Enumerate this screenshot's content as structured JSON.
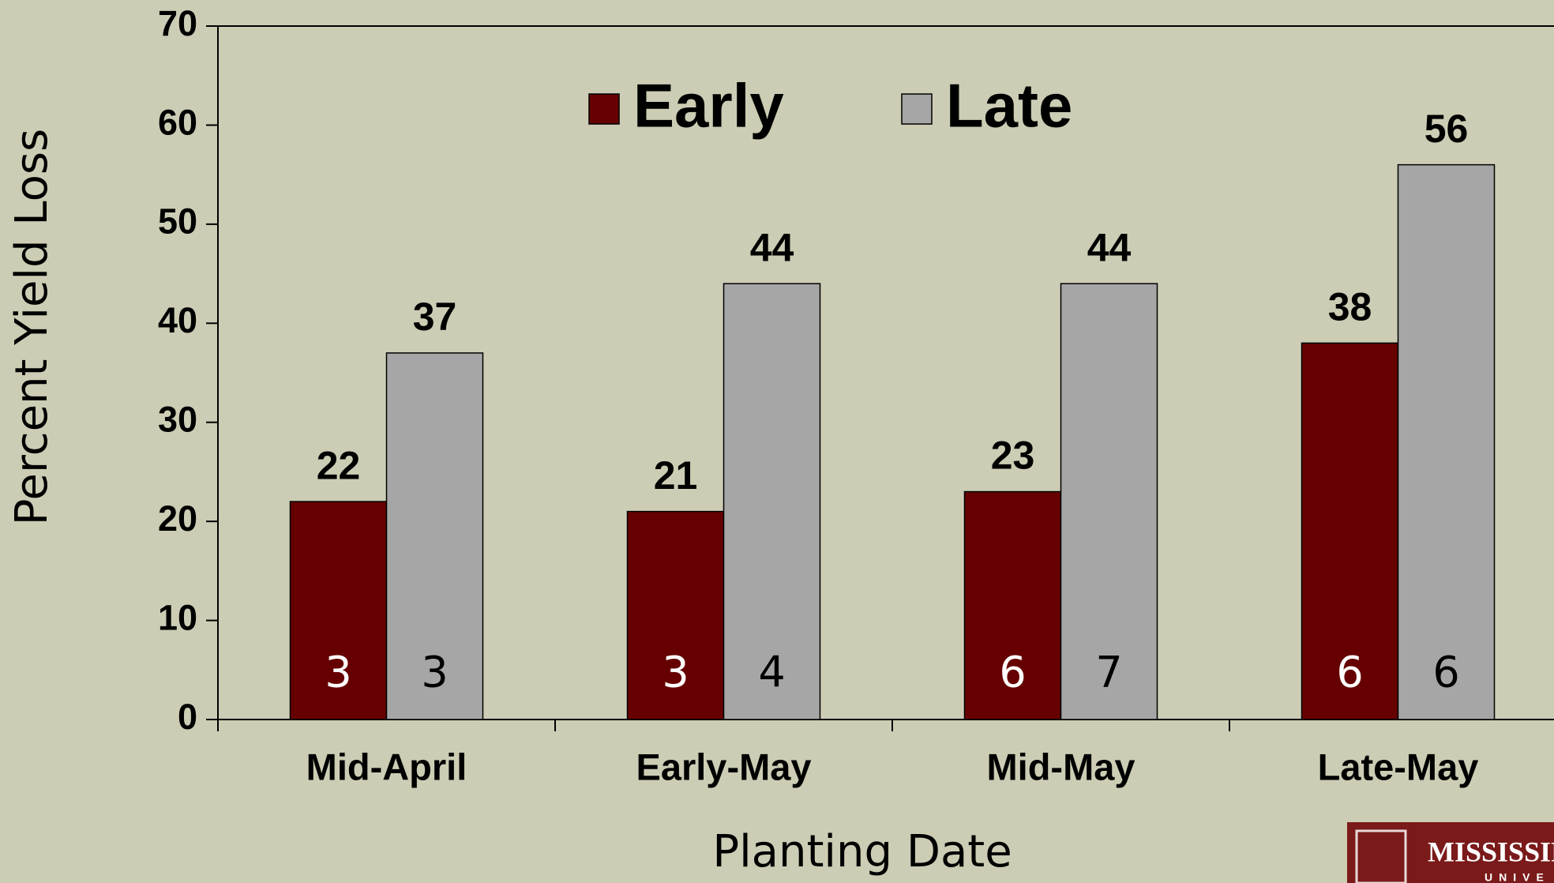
{
  "chart_data": {
    "type": "bar",
    "categories": [
      "Mid-April",
      "Early-May",
      "Mid-May",
      "Late-May"
    ],
    "series": [
      {
        "name": "Early",
        "color": "#660000",
        "values": [
          22,
          21,
          23,
          38
        ],
        "counts": [
          3,
          3,
          6,
          6
        ]
      },
      {
        "name": "Late",
        "color": "#a6a6a6",
        "values": [
          37,
          44,
          44,
          56
        ],
        "counts": [
          3,
          4,
          7,
          6
        ]
      }
    ],
    "ylim": [
      0,
      70
    ],
    "yticks": [
      0,
      10,
      20,
      30,
      40,
      50,
      60,
      70
    ],
    "y_label": "Percent Yield Loss",
    "x_label": "Planting Date",
    "logo_text": [
      "MISSISSIP",
      "UNIVE"
    ]
  }
}
